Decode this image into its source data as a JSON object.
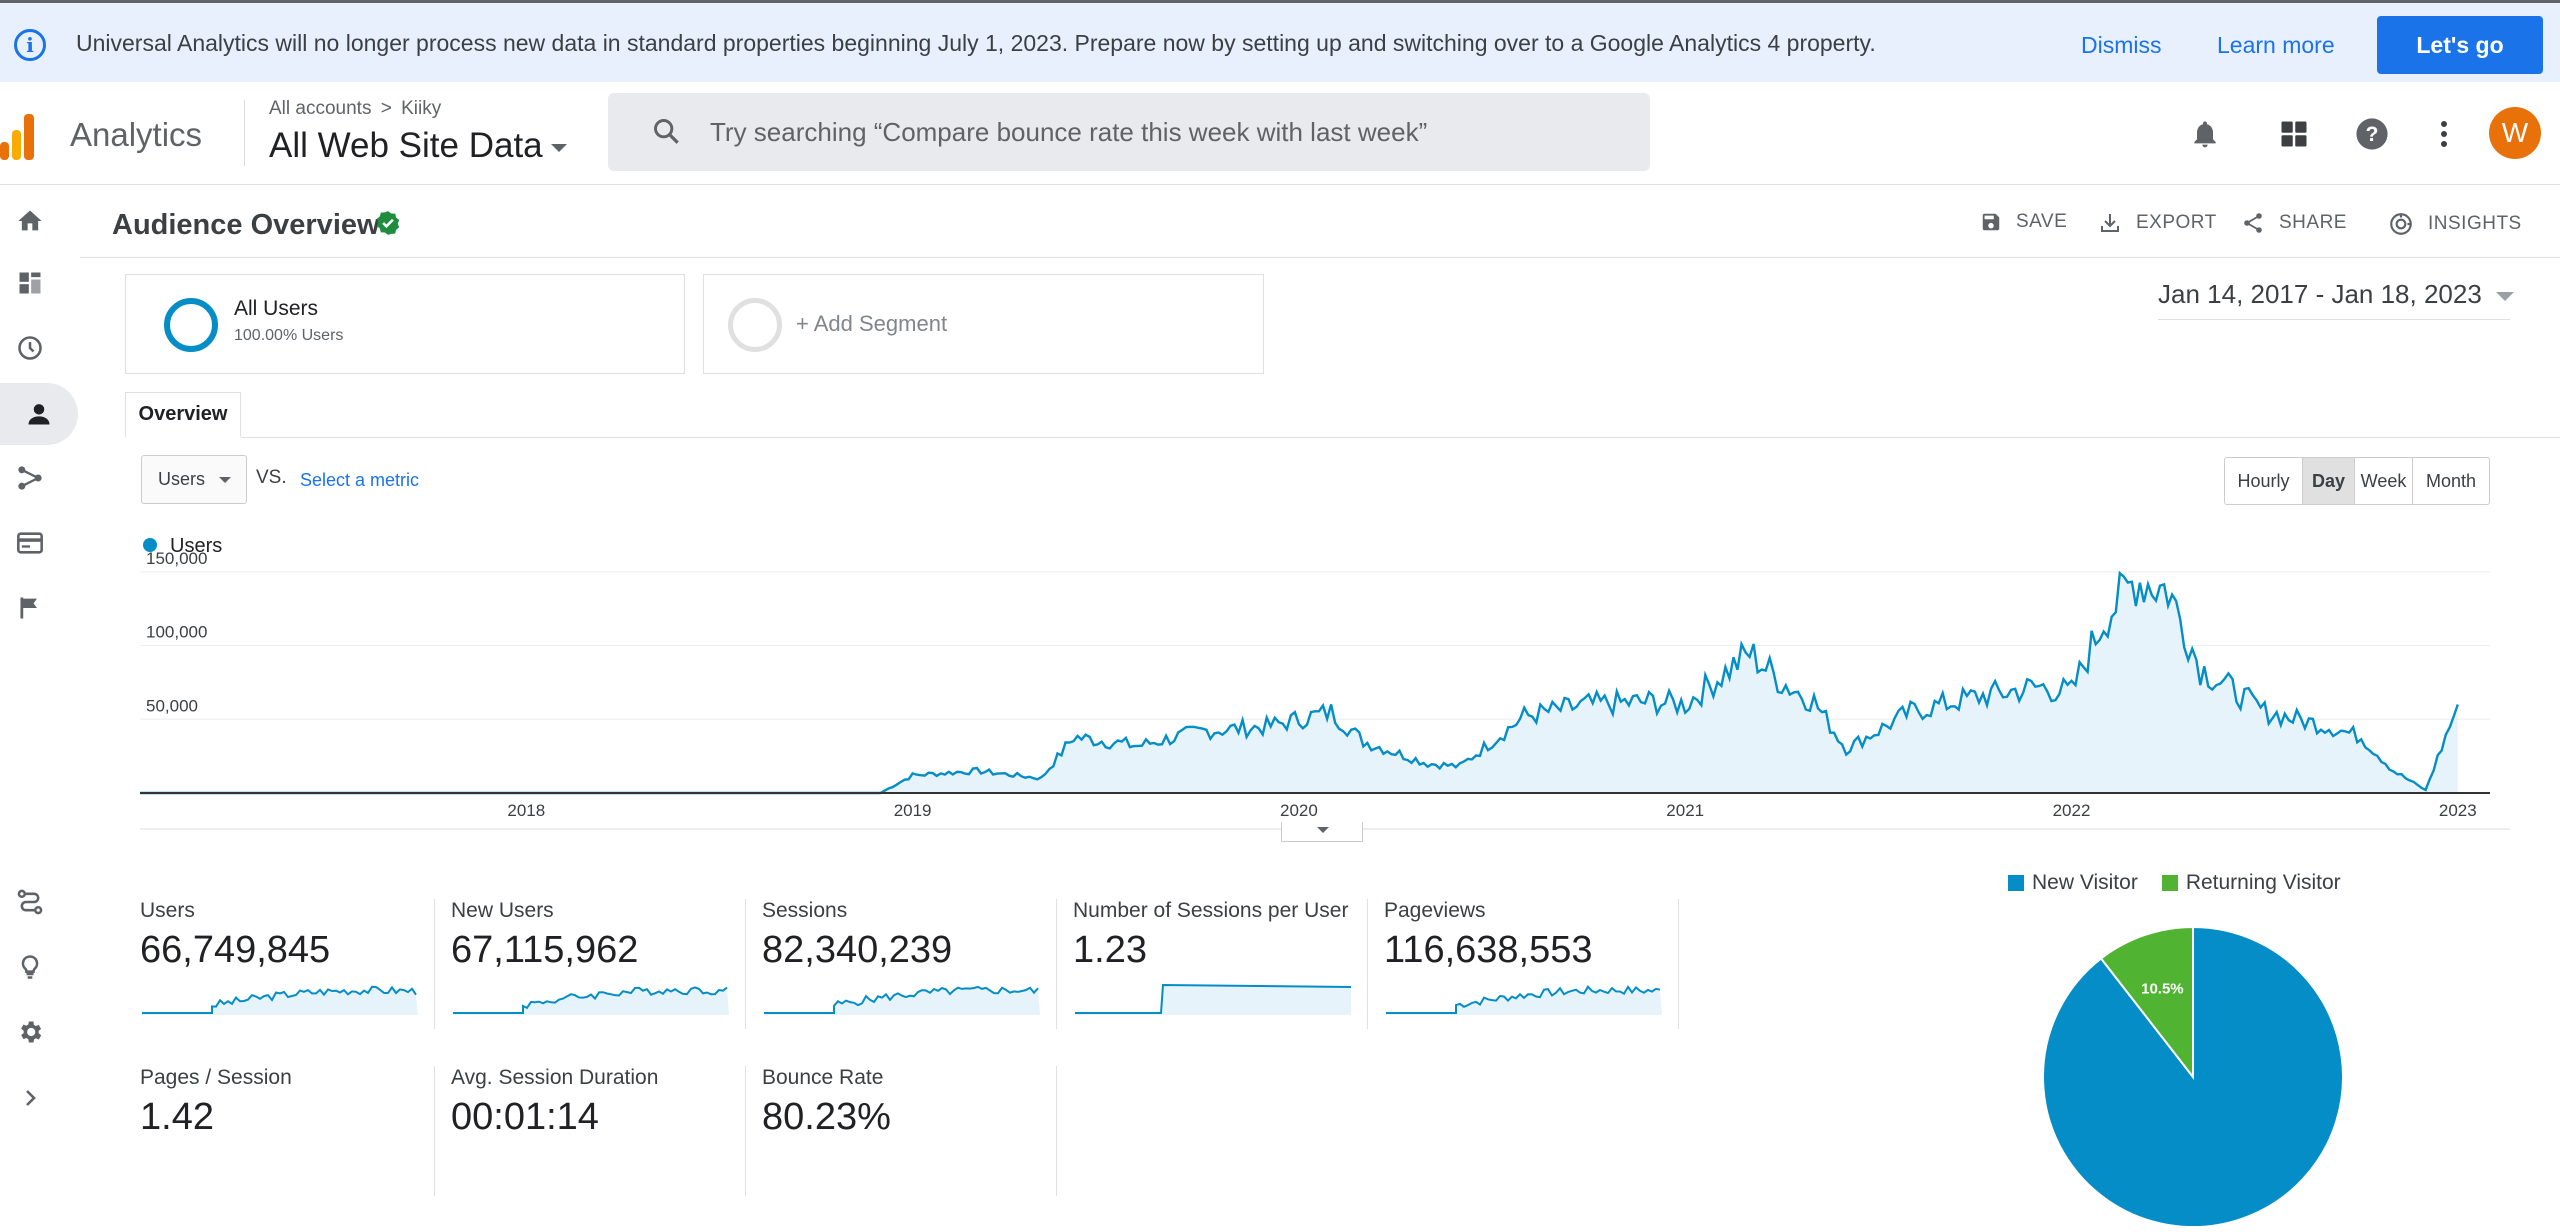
{
  "banner": {
    "message": "Universal Analytics will no longer process new data in standard properties beginning July 1, 2023. Prepare now by setting up and switching over to a Google Analytics 4 property.",
    "dismiss": "Dismiss",
    "learn_more": "Learn more",
    "lets_go": "Let's go"
  },
  "header": {
    "app_name": "Analytics",
    "breadcrumb_root": "All accounts",
    "breadcrumb_account": "Kiiky",
    "property": "All Web Site Data",
    "search_placeholder": "Try searching “Compare bounce rate this week with last week”",
    "avatar_initial": "W"
  },
  "toolbar": {
    "title": "Audience Overview",
    "save": "SAVE",
    "export": "EXPORT",
    "share": "SHARE",
    "insights": "INSIGHTS"
  },
  "segments": {
    "all_users": "All Users",
    "all_users_pct": "100.00% Users",
    "add_segment": "+ Add Segment"
  },
  "date_range": "Jan 14, 2017 - Jan 18, 2023",
  "tabs": {
    "overview": "Overview"
  },
  "metric_selector": {
    "selected": "Users",
    "vs": "VS.",
    "select_metric": "Select a metric"
  },
  "granularity": {
    "options": [
      "Hourly",
      "Day",
      "Week",
      "Month"
    ],
    "selected": "Day"
  },
  "chart_data": [
    {
      "type": "area",
      "series": [
        {
          "name": "Users",
          "color": "#058dc7"
        }
      ],
      "x": [
        "2017-01",
        "2017-07",
        "2018-01",
        "2018-07",
        "2018-12",
        "2019-01",
        "2019-03",
        "2019-05",
        "2019-06",
        "2019-08",
        "2019-10",
        "2019-12",
        "2020-01",
        "2020-02",
        "2020-03",
        "2020-05",
        "2020-06",
        "2020-08",
        "2020-10",
        "2020-12",
        "2021-01",
        "2021-03",
        "2021-04",
        "2021-05",
        "2021-06",
        "2021-08",
        "2021-10",
        "2021-12",
        "2022-01",
        "2022-02",
        "2022-03",
        "2022-04",
        "2022-05",
        "2022-07",
        "2022-09",
        "2022-10",
        "2022-11",
        "2022-12",
        "2023-01"
      ],
      "values": [
        0,
        0,
        0,
        0,
        0,
        12000,
        15000,
        10000,
        38000,
        32000,
        42000,
        45000,
        50000,
        55000,
        35000,
        20000,
        18000,
        52000,
        60000,
        62000,
        60000,
        95000,
        75000,
        62000,
        30000,
        55000,
        65000,
        72000,
        68000,
        118000,
        145000,
        138000,
        85000,
        55000,
        45000,
        38000,
        15000,
        2000,
        60000
      ],
      "xtick_labels": [
        "2018",
        "2019",
        "2020",
        "2021",
        "2022",
        "2023"
      ],
      "ytick_labels": [
        "50,000",
        "100,000",
        "150,000"
      ],
      "ylim": [
        0,
        150000
      ],
      "legend": "Users"
    },
    {
      "type": "pie",
      "labels": [
        "New Visitor",
        "Returning Visitor"
      ],
      "values": [
        89.5,
        10.5
      ],
      "colors": [
        "#058dc7",
        "#50b432"
      ],
      "data_labels": [
        "10.5%"
      ]
    }
  ],
  "metrics": [
    {
      "label": "Users",
      "value": "66,749,845"
    },
    {
      "label": "New Users",
      "value": "67,115,962"
    },
    {
      "label": "Sessions",
      "value": "82,340,239"
    },
    {
      "label": "Number of Sessions per User",
      "value": "1.23"
    },
    {
      "label": "Pageviews",
      "value": "116,638,553"
    },
    {
      "label": "Pages / Session",
      "value": "1.42"
    },
    {
      "label": "Avg. Session Duration",
      "value": "00:01:14"
    },
    {
      "label": "Bounce Rate",
      "value": "80.23%"
    }
  ],
  "colors": {
    "primary": "#1a73e8",
    "chart_line": "#058dc7",
    "returning": "#50b432",
    "avatar": "#e8710a"
  },
  "icons": {
    "nav": [
      "home-icon",
      "customization-icon",
      "realtime-icon",
      "audience-icon",
      "acquisition-icon",
      "behavior-icon",
      "conversions-icon",
      "attribution-icon",
      "discover-icon",
      "admin-icon",
      "expand-icon"
    ],
    "header": [
      "bell-icon",
      "apps-icon",
      "help-icon",
      "more-icon"
    ]
  }
}
